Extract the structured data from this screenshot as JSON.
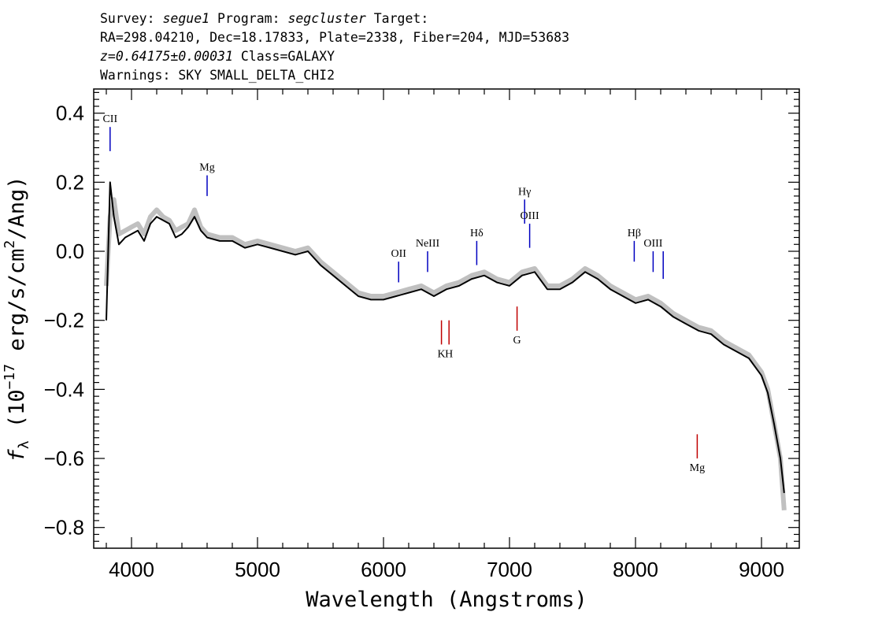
{
  "header": {
    "line1": {
      "survey_label": "Survey: ",
      "survey": "segue1",
      "program_label": " Program: ",
      "program": "segcluster",
      "target_label": " Target:"
    },
    "line2": "RA=298.04210, Dec=18.17833, Plate=2338, Fiber=204, MJD=53683",
    "line3": {
      "redshift": "z=0.64175±0.00031",
      "class": " Class=GALAXY"
    },
    "line4": "Warnings: SKY SMALL_DELTA_CHI2"
  },
  "chart_data": {
    "type": "line",
    "xlabel": "Wavelength (Angstroms)",
    "ylabel": "f_λ (10^-17 erg/s/cm²/Ang)",
    "xlim": [
      3700,
      9300
    ],
    "ylim": [
      -0.86,
      0.47
    ],
    "x_ticks": [
      4000,
      5000,
      6000,
      7000,
      8000,
      9000
    ],
    "x_tick_labels": [
      "4000",
      "5000",
      "6000",
      "7000",
      "8000",
      "9000"
    ],
    "y_ticks": [
      0.4,
      0.2,
      0.0,
      -0.2,
      -0.4,
      -0.6,
      -0.8
    ],
    "y_tick_labels": [
      "0.4",
      "0.2",
      "0.0",
      "−0.2",
      "−0.4",
      "−0.6",
      "−0.8"
    ],
    "grid": false,
    "series": [
      {
        "role": "noisy flux",
        "color": "#c0c0c0",
        "x": [
          3800,
          3830,
          3860,
          3900,
          3950,
          4000,
          4050,
          4100,
          4150,
          4200,
          4250,
          4300,
          4350,
          4400,
          4450,
          4500,
          4550,
          4600,
          4700,
          4800,
          4900,
          5000,
          5100,
          5200,
          5300,
          5400,
          5500,
          5600,
          5700,
          5800,
          5900,
          6000,
          6100,
          6200,
          6300,
          6400,
          6500,
          6600,
          6700,
          6800,
          6900,
          7000,
          7100,
          7200,
          7300,
          7400,
          7500,
          7600,
          7700,
          7800,
          7900,
          8000,
          8100,
          8200,
          8300,
          8400,
          8500,
          8600,
          8700,
          8800,
          8900,
          9000,
          9050,
          9100,
          9150,
          9180
        ],
        "y": [
          -0.1,
          0.1,
          0.15,
          0.05,
          0.06,
          0.07,
          0.08,
          0.05,
          0.1,
          0.12,
          0.1,
          0.09,
          0.06,
          0.07,
          0.08,
          0.12,
          0.07,
          0.05,
          0.04,
          0.04,
          0.02,
          0.03,
          0.02,
          0.01,
          0.0,
          0.01,
          -0.03,
          -0.06,
          -0.09,
          -0.12,
          -0.13,
          -0.13,
          -0.12,
          -0.11,
          -0.1,
          -0.12,
          -0.1,
          -0.09,
          -0.07,
          -0.06,
          -0.08,
          -0.09,
          -0.06,
          -0.05,
          -0.1,
          -0.1,
          -0.08,
          -0.05,
          -0.07,
          -0.1,
          -0.12,
          -0.14,
          -0.13,
          -0.15,
          -0.18,
          -0.2,
          -0.22,
          -0.23,
          -0.26,
          -0.28,
          -0.3,
          -0.35,
          -0.4,
          -0.5,
          -0.6,
          -0.75
        ]
      },
      {
        "role": "smoothed flux",
        "color": "#000000",
        "x": [
          3800,
          3830,
          3860,
          3900,
          3950,
          4000,
          4050,
          4100,
          4150,
          4200,
          4250,
          4300,
          4350,
          4400,
          4450,
          4500,
          4550,
          4600,
          4700,
          4800,
          4900,
          5000,
          5100,
          5200,
          5300,
          5400,
          5500,
          5600,
          5700,
          5800,
          5900,
          6000,
          6100,
          6200,
          6300,
          6400,
          6500,
          6600,
          6700,
          6800,
          6900,
          7000,
          7100,
          7200,
          7300,
          7400,
          7500,
          7600,
          7700,
          7800,
          7900,
          8000,
          8100,
          8200,
          8300,
          8400,
          8500,
          8600,
          8700,
          8800,
          8900,
          9000,
          9050,
          9100,
          9150,
          9180
        ],
        "y": [
          -0.2,
          0.2,
          0.1,
          0.02,
          0.04,
          0.05,
          0.06,
          0.03,
          0.08,
          0.1,
          0.09,
          0.08,
          0.04,
          0.05,
          0.07,
          0.1,
          0.06,
          0.04,
          0.03,
          0.03,
          0.01,
          0.02,
          0.01,
          0.0,
          -0.01,
          0.0,
          -0.04,
          -0.07,
          -0.1,
          -0.13,
          -0.14,
          -0.14,
          -0.13,
          -0.12,
          -0.11,
          -0.13,
          -0.11,
          -0.1,
          -0.08,
          -0.07,
          -0.09,
          -0.1,
          -0.07,
          -0.06,
          -0.11,
          -0.11,
          -0.09,
          -0.06,
          -0.08,
          -0.11,
          -0.13,
          -0.15,
          -0.14,
          -0.16,
          -0.19,
          -0.21,
          -0.23,
          -0.24,
          -0.27,
          -0.29,
          -0.31,
          -0.36,
          -0.41,
          -0.5,
          -0.6,
          -0.7
        ]
      }
    ],
    "line_markers": [
      {
        "label": "CII",
        "x": 3830,
        "y_top": 0.36,
        "y_bottom": 0.29,
        "color": "#0000c0",
        "label_pos": "above"
      },
      {
        "label": "Mg",
        "x": 4600,
        "y_top": 0.22,
        "y_bottom": 0.16,
        "color": "#0000c0",
        "label_pos": "above"
      },
      {
        "label": "OII",
        "x": 6120,
        "y_top": -0.03,
        "y_bottom": -0.09,
        "color": "#0000c0",
        "label_pos": "above"
      },
      {
        "label": "NeIII",
        "x": 6350,
        "y_top": 0.0,
        "y_bottom": -0.06,
        "color": "#0000c0",
        "label_pos": "above"
      },
      {
        "label": "Hδ",
        "x": 6740,
        "y_top": 0.03,
        "y_bottom": -0.04,
        "color": "#0000c0",
        "label_pos": "above"
      },
      {
        "label": "Hγ",
        "x": 7120,
        "y_top": 0.15,
        "y_bottom": 0.08,
        "color": "#0000c0",
        "label_pos": "above"
      },
      {
        "label": "OIII",
        "x": 7160,
        "y_top": 0.08,
        "y_bottom": 0.01,
        "color": "#0000c0",
        "label_pos": "above"
      },
      {
        "label": "Hβ",
        "x": 7990,
        "y_top": 0.03,
        "y_bottom": -0.03,
        "color": "#0000c0",
        "label_pos": "above"
      },
      {
        "label": "OIII",
        "x": 8140,
        "y_top": 0.0,
        "y_bottom": -0.06,
        "color": "#0000c0",
        "label_pos": "above"
      },
      {
        "label": "",
        "x": 8220,
        "y_top": 0.0,
        "y_bottom": -0.08,
        "color": "#0000c0",
        "label_pos": "above"
      },
      {
        "label": "K",
        "x": 6460,
        "y_top": -0.2,
        "y_bottom": -0.27,
        "color": "#c00000",
        "label_pos": "below"
      },
      {
        "label": "H",
        "x": 6520,
        "y_top": -0.2,
        "y_bottom": -0.27,
        "color": "#c00000",
        "label_pos": "below"
      },
      {
        "label": "G",
        "x": 7060,
        "y_top": -0.16,
        "y_bottom": -0.23,
        "color": "#c00000",
        "label_pos": "below"
      },
      {
        "label": "Mg",
        "x": 8490,
        "y_top": -0.53,
        "y_bottom": -0.6,
        "color": "#c00000",
        "label_pos": "below"
      }
    ]
  }
}
